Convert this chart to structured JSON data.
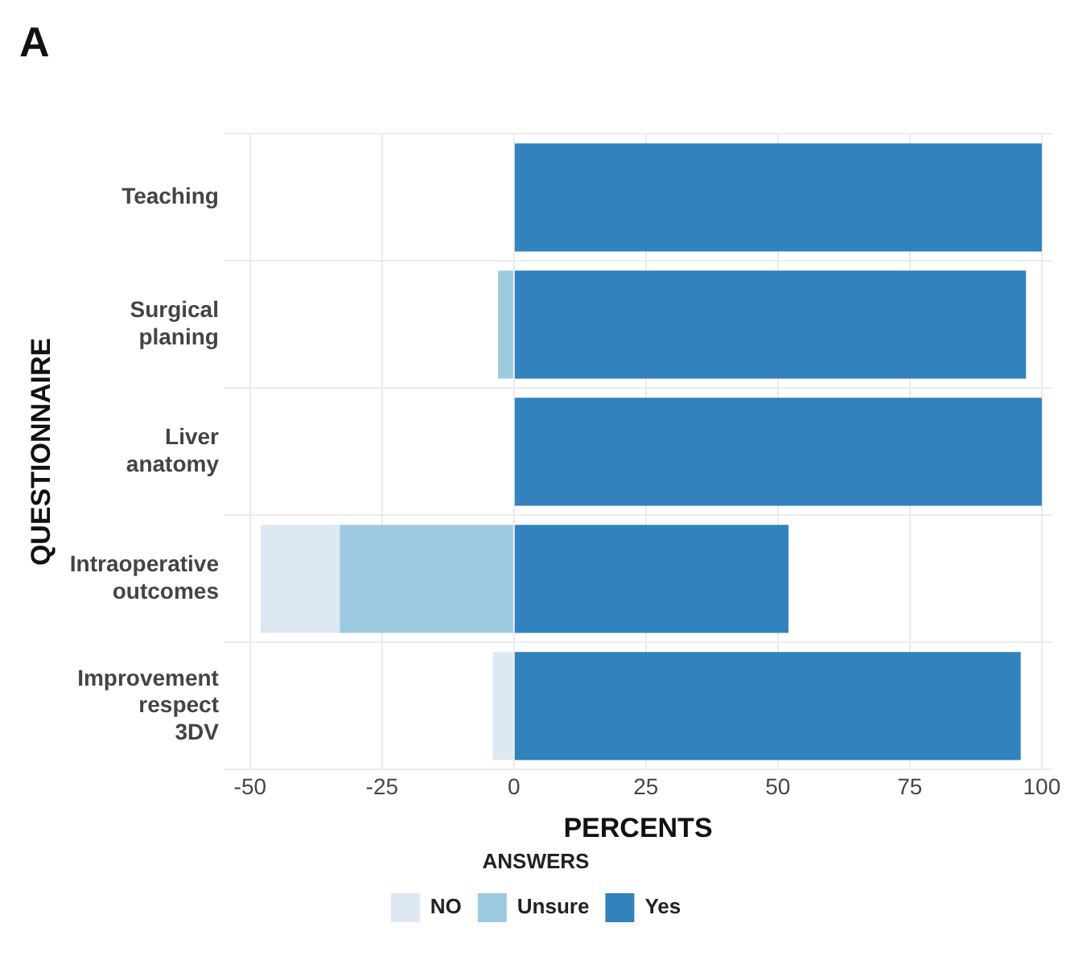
{
  "chart_data": {
    "type": "bar",
    "title": "A",
    "xlabel": "PERCENTS",
    "ylabel": "QUESTIONNAIRE",
    "legend_title": "ANSWERS",
    "orientation": "horizontal",
    "stacked": true,
    "categories": [
      "Teaching",
      "Surgical planing",
      "Liver anatomy",
      "Intraoperative outcomes",
      "Improvement respect 3DV"
    ],
    "series": [
      {
        "name": "NO",
        "color": "#dde8f3",
        "values": [
          0,
          0,
          0,
          -15,
          -4
        ]
      },
      {
        "name": "Unsure",
        "color": "#9ecae1",
        "values": [
          0,
          -3,
          0,
          -33,
          0
        ]
      },
      {
        "name": "Yes",
        "color": "#3182bd",
        "values": [
          100,
          97,
          100,
          52,
          96
        ]
      }
    ],
    "xlim": [
      -55,
      102
    ],
    "xticks": [
      -50,
      -25,
      0,
      25,
      50,
      75,
      100
    ],
    "grid": true,
    "legend": "bottom"
  }
}
